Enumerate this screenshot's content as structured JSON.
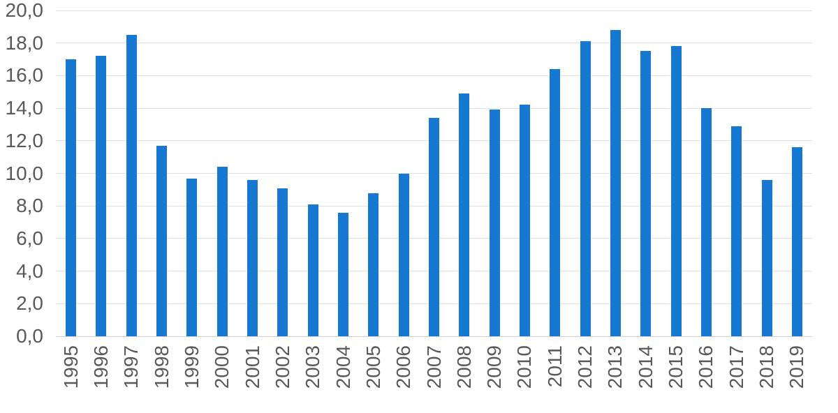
{
  "chart_data": {
    "type": "bar",
    "title": "",
    "xlabel": "",
    "ylabel": "",
    "categories": [
      "1995",
      "1996",
      "1997",
      "1998",
      "1999",
      "2000",
      "2001",
      "2002",
      "2003",
      "2004",
      "2005",
      "2006",
      "2007",
      "2008",
      "2009",
      "2010",
      "2011",
      "2012",
      "2013",
      "2014",
      "2015",
      "2016",
      "2017",
      "2018",
      "2019"
    ],
    "values": [
      17.0,
      17.2,
      18.5,
      11.7,
      9.7,
      10.4,
      9.6,
      9.1,
      8.1,
      7.6,
      8.8,
      10.0,
      13.4,
      14.9,
      13.9,
      14.2,
      16.4,
      18.1,
      18.8,
      17.5,
      17.8,
      14.0,
      12.9,
      9.6,
      11.6
    ],
    "ylim": [
      0,
      20
    ],
    "y_ticks": [
      {
        "value": 0,
        "label": "0,0"
      },
      {
        "value": 2,
        "label": "2,0"
      },
      {
        "value": 4,
        "label": "4,0"
      },
      {
        "value": 6,
        "label": "6,0"
      },
      {
        "value": 8,
        "label": "8,0"
      },
      {
        "value": 10,
        "label": "10,0"
      },
      {
        "value": 12,
        "label": "12,0"
      },
      {
        "value": 14,
        "label": "14,0"
      },
      {
        "value": 16,
        "label": "16,0"
      },
      {
        "value": 18,
        "label": "18,0"
      },
      {
        "value": 20,
        "label": "20,0"
      }
    ],
    "decimal_separator": ",",
    "grid": "horizontal",
    "legend": "none",
    "colors": {
      "bar": "#1778D2",
      "gridline": "#e0e0e0",
      "baseline": "#d2d2d2",
      "axis_label": "#58595b",
      "background": "#ffffff"
    }
  }
}
